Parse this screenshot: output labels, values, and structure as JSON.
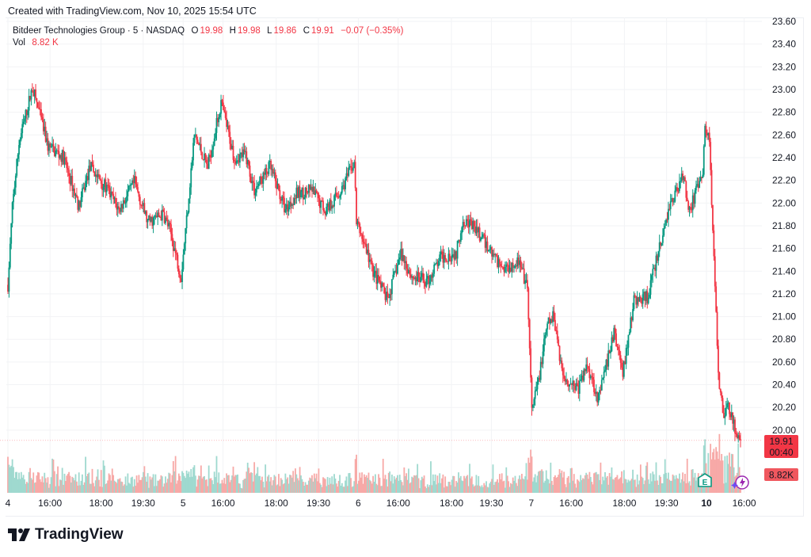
{
  "header": {
    "created": "Created with TradingView.com, Nov 10, 2025 15:54 UTC"
  },
  "legend": {
    "symbol": "Bitdeer Technologies Group · 5 · NASDAQ",
    "o_label": "O",
    "o": "19.98",
    "h_label": "H",
    "h": "19.98",
    "l_label": "L",
    "l": "19.86",
    "c_label": "C",
    "c": "19.91",
    "change": "−0.07 (−0.35%)",
    "vol_label": "Vol",
    "vol": "8.82 K"
  },
  "price_badge": {
    "price": "19.91",
    "countdown": "00:40"
  },
  "volume_badge": "8.82K",
  "markers": {
    "earnings": "E"
  },
  "logo": "TradingView",
  "colors": {
    "up": "#089981",
    "down": "#f23645",
    "up_vol": "#9fd9cf",
    "down_vol": "#f7a9a7"
  },
  "chart_data": {
    "type": "candlestick",
    "title": "Bitdeer Technologies Group · 5 · NASDAQ",
    "ylim": [
      19.7,
      23.65
    ],
    "y_ticks": [
      "23.60",
      "23.40",
      "23.20",
      "23.00",
      "22.80",
      "22.60",
      "22.40",
      "22.20",
      "22.00",
      "21.80",
      "21.60",
      "21.40",
      "21.20",
      "21.00",
      "20.80",
      "20.60",
      "20.40",
      "20.20",
      "20.00"
    ],
    "x_ticks": [
      {
        "label": "4",
        "bar": 0,
        "bold": false
      },
      {
        "label": "16:00",
        "bar": 19
      },
      {
        "label": "18:00",
        "bar": 42
      },
      {
        "label": "19:30",
        "bar": 61
      },
      {
        "label": "5",
        "bar": 79
      },
      {
        "label": "16:00",
        "bar": 97
      },
      {
        "label": "18:00",
        "bar": 121
      },
      {
        "label": "19:30",
        "bar": 140
      },
      {
        "label": "6",
        "bar": 158
      },
      {
        "label": "16:00",
        "bar": 176
      },
      {
        "label": "18:00",
        "bar": 200
      },
      {
        "label": "19:30",
        "bar": 218
      },
      {
        "label": "7",
        "bar": 236
      },
      {
        "label": "16:00",
        "bar": 254
      },
      {
        "label": "18:00",
        "bar": 278
      },
      {
        "label": "19:30",
        "bar": 297
      },
      {
        "label": "10",
        "bar": 315,
        "bold": true
      },
      {
        "label": "16:00",
        "bar": 332
      }
    ],
    "close_path": [
      [
        0,
        21.28
      ],
      [
        2,
        21.97
      ],
      [
        5,
        22.53
      ],
      [
        11,
        23.02
      ],
      [
        13,
        22.88
      ],
      [
        18,
        22.5
      ],
      [
        25,
        22.4
      ],
      [
        32,
        21.97
      ],
      [
        37,
        22.32
      ],
      [
        45,
        22.11
      ],
      [
        50,
        21.94
      ],
      [
        57,
        22.18
      ],
      [
        63,
        21.83
      ],
      [
        70,
        21.9
      ],
      [
        73,
        21.76
      ],
      [
        78,
        21.35
      ],
      [
        80,
        21.76
      ],
      [
        84,
        22.6
      ],
      [
        90,
        22.32
      ],
      [
        96,
        22.88
      ],
      [
        102,
        22.4
      ],
      [
        107,
        22.43
      ],
      [
        111,
        22.11
      ],
      [
        118,
        22.32
      ],
      [
        125,
        21.94
      ],
      [
        130,
        22.08
      ],
      [
        137,
        22.11
      ],
      [
        143,
        21.94
      ],
      [
        150,
        22.11
      ],
      [
        156,
        22.36
      ],
      [
        157,
        21.83
      ],
      [
        161,
        21.62
      ],
      [
        164,
        21.42
      ],
      [
        171,
        21.14
      ],
      [
        177,
        21.56
      ],
      [
        182,
        21.35
      ],
      [
        189,
        21.31
      ],
      [
        195,
        21.52
      ],
      [
        202,
        21.56
      ],
      [
        205,
        21.87
      ],
      [
        211,
        21.76
      ],
      [
        216,
        21.62
      ],
      [
        223,
        21.42
      ],
      [
        230,
        21.49
      ],
      [
        234,
        21.24
      ],
      [
        236,
        20.16
      ],
      [
        239,
        20.44
      ],
      [
        243,
        20.93
      ],
      [
        246,
        21.0
      ],
      [
        250,
        20.47
      ],
      [
        257,
        20.37
      ],
      [
        261,
        20.58
      ],
      [
        266,
        20.27
      ],
      [
        273,
        20.86
      ],
      [
        277,
        20.51
      ],
      [
        282,
        21.14
      ],
      [
        288,
        21.17
      ],
      [
        293,
        21.56
      ],
      [
        298,
        21.97
      ],
      [
        304,
        22.25
      ],
      [
        307,
        21.94
      ],
      [
        313,
        22.25
      ],
      [
        314,
        22.67
      ],
      [
        316,
        22.53
      ],
      [
        318,
        21.49
      ],
      [
        320,
        20.51
      ],
      [
        322,
        20.16
      ],
      [
        325,
        20.2
      ],
      [
        328,
        19.95
      ],
      [
        330,
        19.91
      ]
    ],
    "last_price": 19.91,
    "last_volume": "8.82K"
  }
}
